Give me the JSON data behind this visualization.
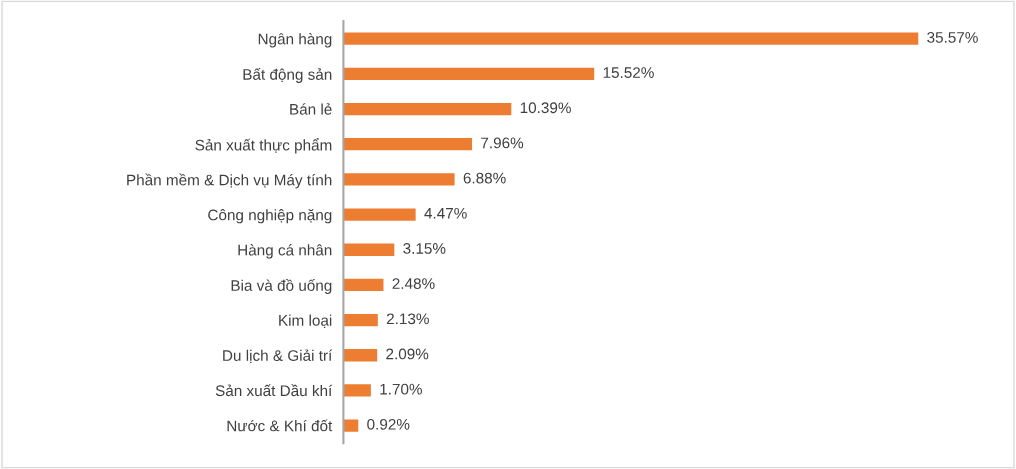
{
  "chart_data": {
    "type": "bar",
    "orientation": "horizontal",
    "color": "#ed7d31",
    "categories": [
      "Ngân hàng",
      "Bất động sản",
      "Bán lẻ",
      "Sản xuất thực phẩm",
      "Phần mềm & Dịch vụ Máy tính",
      "Công nghiệp nặng",
      "Hàng cá nhân",
      "Bia và đồ uống",
      "Kim loại",
      "Du lịch & Giải trí",
      "Sản xuất Dầu khí",
      "Nước & Khí đốt"
    ],
    "values": [
      35.57,
      15.52,
      10.39,
      7.96,
      6.88,
      4.47,
      3.15,
      2.48,
      2.13,
      2.09,
      1.7,
      0.92
    ],
    "value_labels": [
      "35.57%",
      "15.52%",
      "10.39%",
      "7.96%",
      "6.88%",
      "4.47%",
      "3.15%",
      "2.48%",
      "2.13%",
      "2.09%",
      "1.70%",
      "0.92%"
    ],
    "grid": false,
    "legend": false
  }
}
